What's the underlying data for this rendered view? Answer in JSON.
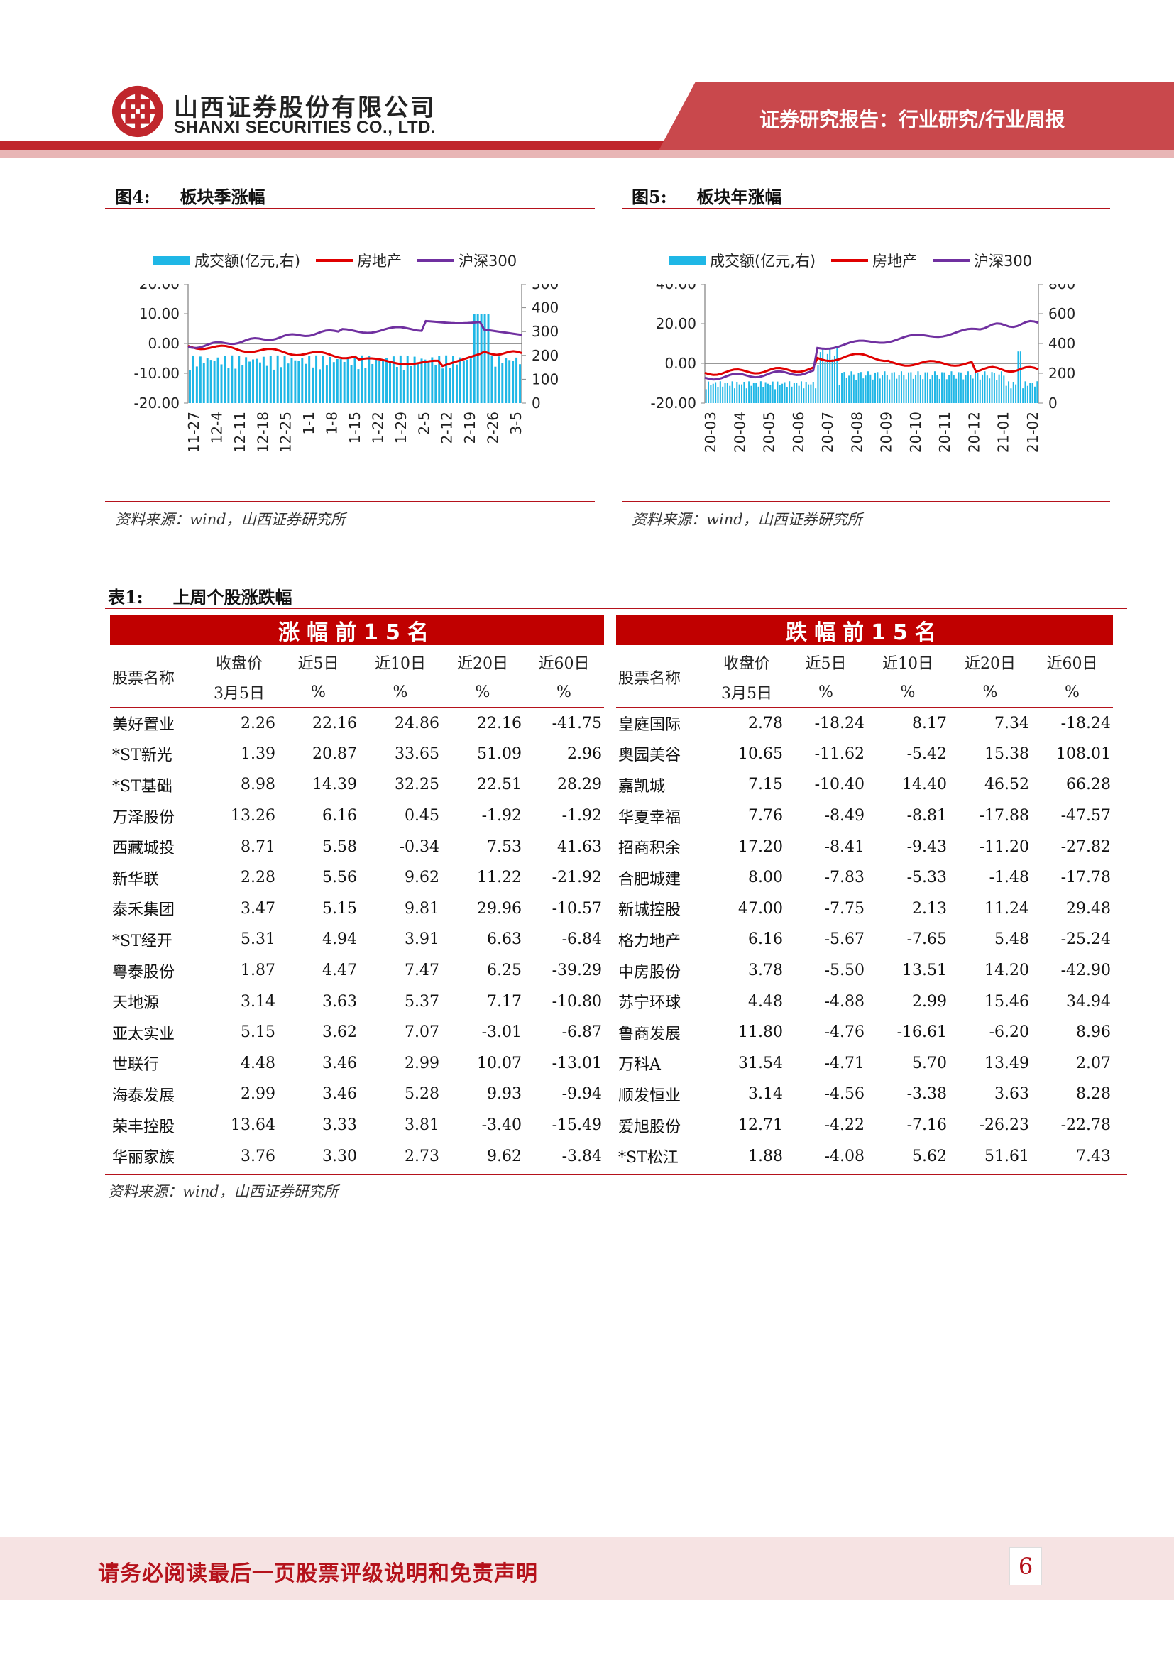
{
  "header": {
    "company_cn": "山西证券股份有限公司",
    "company_en": "SHANXI SECURITIES CO., LTD.",
    "report_title": "证券研究报告：行业研究/行业周报"
  },
  "colors": {
    "brand_red": "#b5121b",
    "band_red": "#c00000",
    "bar_blue": "#1fb7e6",
    "line_red": "#e00000",
    "line_purple": "#7030a0"
  },
  "figures": [
    {
      "number": "图4:",
      "title": "板块季涨幅",
      "source": "资料来源：wind，山西证券研究所",
      "legend": [
        "成交额(亿元,右)",
        "房地产",
        "沪深300"
      ],
      "left_ticks": [
        "20.00",
        "10.00",
        "0.00",
        "-10.00",
        "-20.00"
      ],
      "right_ticks": [
        "500",
        "400",
        "300",
        "200",
        "100",
        "0"
      ],
      "x_ticks": [
        "11-27",
        "12-4",
        "12-11",
        "12-18",
        "12-25",
        "1-1",
        "1-8",
        "1-15",
        "1-22",
        "1-29",
        "2-5",
        "2-12",
        "2-19",
        "2-26",
        "3-5"
      ]
    },
    {
      "number": "图5:",
      "title": "板块年涨幅",
      "source": "资料来源：wind，山西证券研究所",
      "legend": [
        "成交额(亿元,右)",
        "房地产",
        "沪深300"
      ],
      "left_ticks": [
        "40.00",
        "20.00",
        "0.00",
        "-20.00"
      ],
      "right_ticks": [
        "800",
        "600",
        "400",
        "200",
        "0"
      ],
      "x_ticks": [
        "20-03",
        "20-04",
        "20-05",
        "20-06",
        "20-07",
        "20-08",
        "20-09",
        "20-10",
        "20-11",
        "20-12",
        "21-01",
        "21-02"
      ]
    }
  ],
  "table": {
    "number": "表1:",
    "title": "上周个股涨跌幅",
    "gain_band": "涨幅前15名",
    "loss_band": "跌幅前15名",
    "header_row1": [
      "股票名称",
      "收盘价",
      "近5日",
      "近10日",
      "近20日",
      "近60日"
    ],
    "header_row2": [
      "3月5日",
      "%",
      "%",
      "%",
      "%"
    ],
    "gainers": [
      [
        "美好置业",
        "2.26",
        "22.16",
        "24.86",
        "22.16",
        "-41.75"
      ],
      [
        "*ST新光",
        "1.39",
        "20.87",
        "33.65",
        "51.09",
        "2.96"
      ],
      [
        "*ST基础",
        "8.98",
        "14.39",
        "32.25",
        "22.51",
        "28.29"
      ],
      [
        "万泽股份",
        "13.26",
        "6.16",
        "0.45",
        "-1.92",
        "-1.92"
      ],
      [
        "西藏城投",
        "8.71",
        "5.58",
        "-0.34",
        "7.53",
        "41.63"
      ],
      [
        "新华联",
        "2.28",
        "5.56",
        "9.62",
        "11.22",
        "-21.92"
      ],
      [
        "泰禾集团",
        "3.47",
        "5.15",
        "9.81",
        "29.96",
        "-10.57"
      ],
      [
        "*ST经开",
        "5.31",
        "4.94",
        "3.91",
        "6.63",
        "-6.84"
      ],
      [
        "粤泰股份",
        "1.87",
        "4.47",
        "7.47",
        "6.25",
        "-39.29"
      ],
      [
        "天地源",
        "3.14",
        "3.63",
        "5.37",
        "7.17",
        "-10.80"
      ],
      [
        "亚太实业",
        "5.15",
        "3.62",
        "7.07",
        "-3.01",
        "-6.87"
      ],
      [
        "世联行",
        "4.48",
        "3.46",
        "2.99",
        "10.07",
        "-13.01"
      ],
      [
        "海泰发展",
        "2.99",
        "3.46",
        "5.28",
        "9.93",
        "-9.94"
      ],
      [
        "荣丰控股",
        "13.64",
        "3.33",
        "3.81",
        "-3.40",
        "-15.49"
      ],
      [
        "华丽家族",
        "3.76",
        "3.30",
        "2.73",
        "9.62",
        "-3.84"
      ]
    ],
    "losers": [
      [
        "皇庭国际",
        "2.78",
        "-18.24",
        "8.17",
        "7.34",
        "-18.24"
      ],
      [
        "奥园美谷",
        "10.65",
        "-11.62",
        "-5.42",
        "15.38",
        "108.01"
      ],
      [
        "嘉凯城",
        "7.15",
        "-10.40",
        "14.40",
        "46.52",
        "66.28"
      ],
      [
        "华夏幸福",
        "7.76",
        "-8.49",
        "-8.81",
        "-17.88",
        "-47.57"
      ],
      [
        "招商积余",
        "17.20",
        "-8.41",
        "-9.43",
        "-11.20",
        "-27.82"
      ],
      [
        "合肥城建",
        "8.00",
        "-7.83",
        "-5.33",
        "-1.48",
        "-17.78"
      ],
      [
        "新城控股",
        "47.00",
        "-7.75",
        "2.13",
        "11.24",
        "29.48"
      ],
      [
        "格力地产",
        "6.16",
        "-5.67",
        "-7.65",
        "5.48",
        "-25.24"
      ],
      [
        "中房股份",
        "3.78",
        "-5.50",
        "13.51",
        "14.20",
        "-42.90"
      ],
      [
        "苏宁环球",
        "4.48",
        "-4.88",
        "2.99",
        "15.46",
        "34.94"
      ],
      [
        "鲁商发展",
        "11.80",
        "-4.76",
        "-16.61",
        "-6.20",
        "8.96"
      ],
      [
        "万科A",
        "31.54",
        "-4.71",
        "5.70",
        "13.49",
        "2.07"
      ],
      [
        "顺发恒业",
        "3.14",
        "-4.56",
        "-3.38",
        "3.63",
        "8.28"
      ],
      [
        "爱旭股份",
        "12.71",
        "-4.22",
        "-7.16",
        "-26.23",
        "-22.78"
      ],
      [
        "*ST松江",
        "1.88",
        "-4.08",
        "5.62",
        "51.61",
        "7.43"
      ]
    ],
    "source": "资料来源：wind，山西证券研究所"
  },
  "footer": {
    "disclaimer": "请务必阅读最后一页股票评级说明和免责声明",
    "page_number": "6"
  }
}
